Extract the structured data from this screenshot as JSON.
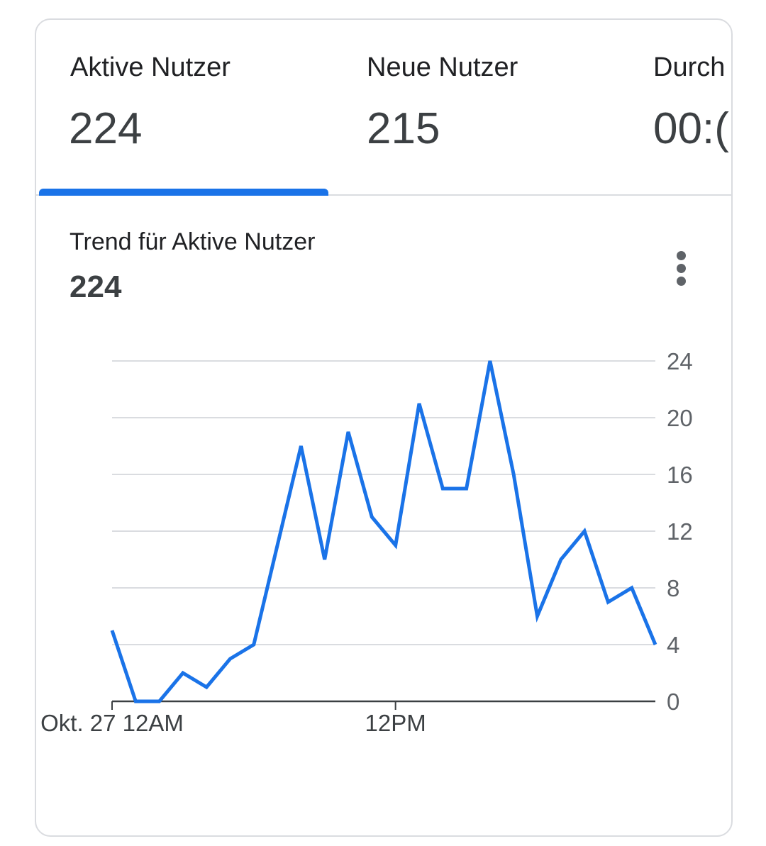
{
  "metrics": {
    "tabs": [
      {
        "label": "Aktive Nutzer",
        "value": "224"
      },
      {
        "label": "Neue Nutzer",
        "value": "215"
      },
      {
        "label": "Durch",
        "value": "00:("
      }
    ]
  },
  "trend": {
    "title": "Trend für Aktive Nutzer",
    "value": "224"
  },
  "colors": {
    "accent": "#1a73e8",
    "grid": "#dadce0",
    "text": "#202124"
  },
  "icons": {
    "more": "more-vert-icon"
  },
  "chart_data": {
    "type": "line",
    "title": "",
    "xlabel": "",
    "ylabel": "",
    "x_tick_labels": [
      "Okt. 27 12AM",
      "12PM"
    ],
    "x_tick_index": [
      0,
      12
    ],
    "y_ticks": [
      0,
      4,
      8,
      12,
      16,
      20,
      24
    ],
    "ylim": [
      0,
      24
    ],
    "grid": true,
    "series": [
      {
        "values": [
          5,
          0,
          0,
          2,
          1,
          3,
          4,
          11,
          18,
          10,
          19,
          13,
          11,
          21,
          15,
          15,
          24,
          16,
          6,
          10,
          12,
          7,
          8,
          4
        ]
      }
    ]
  }
}
